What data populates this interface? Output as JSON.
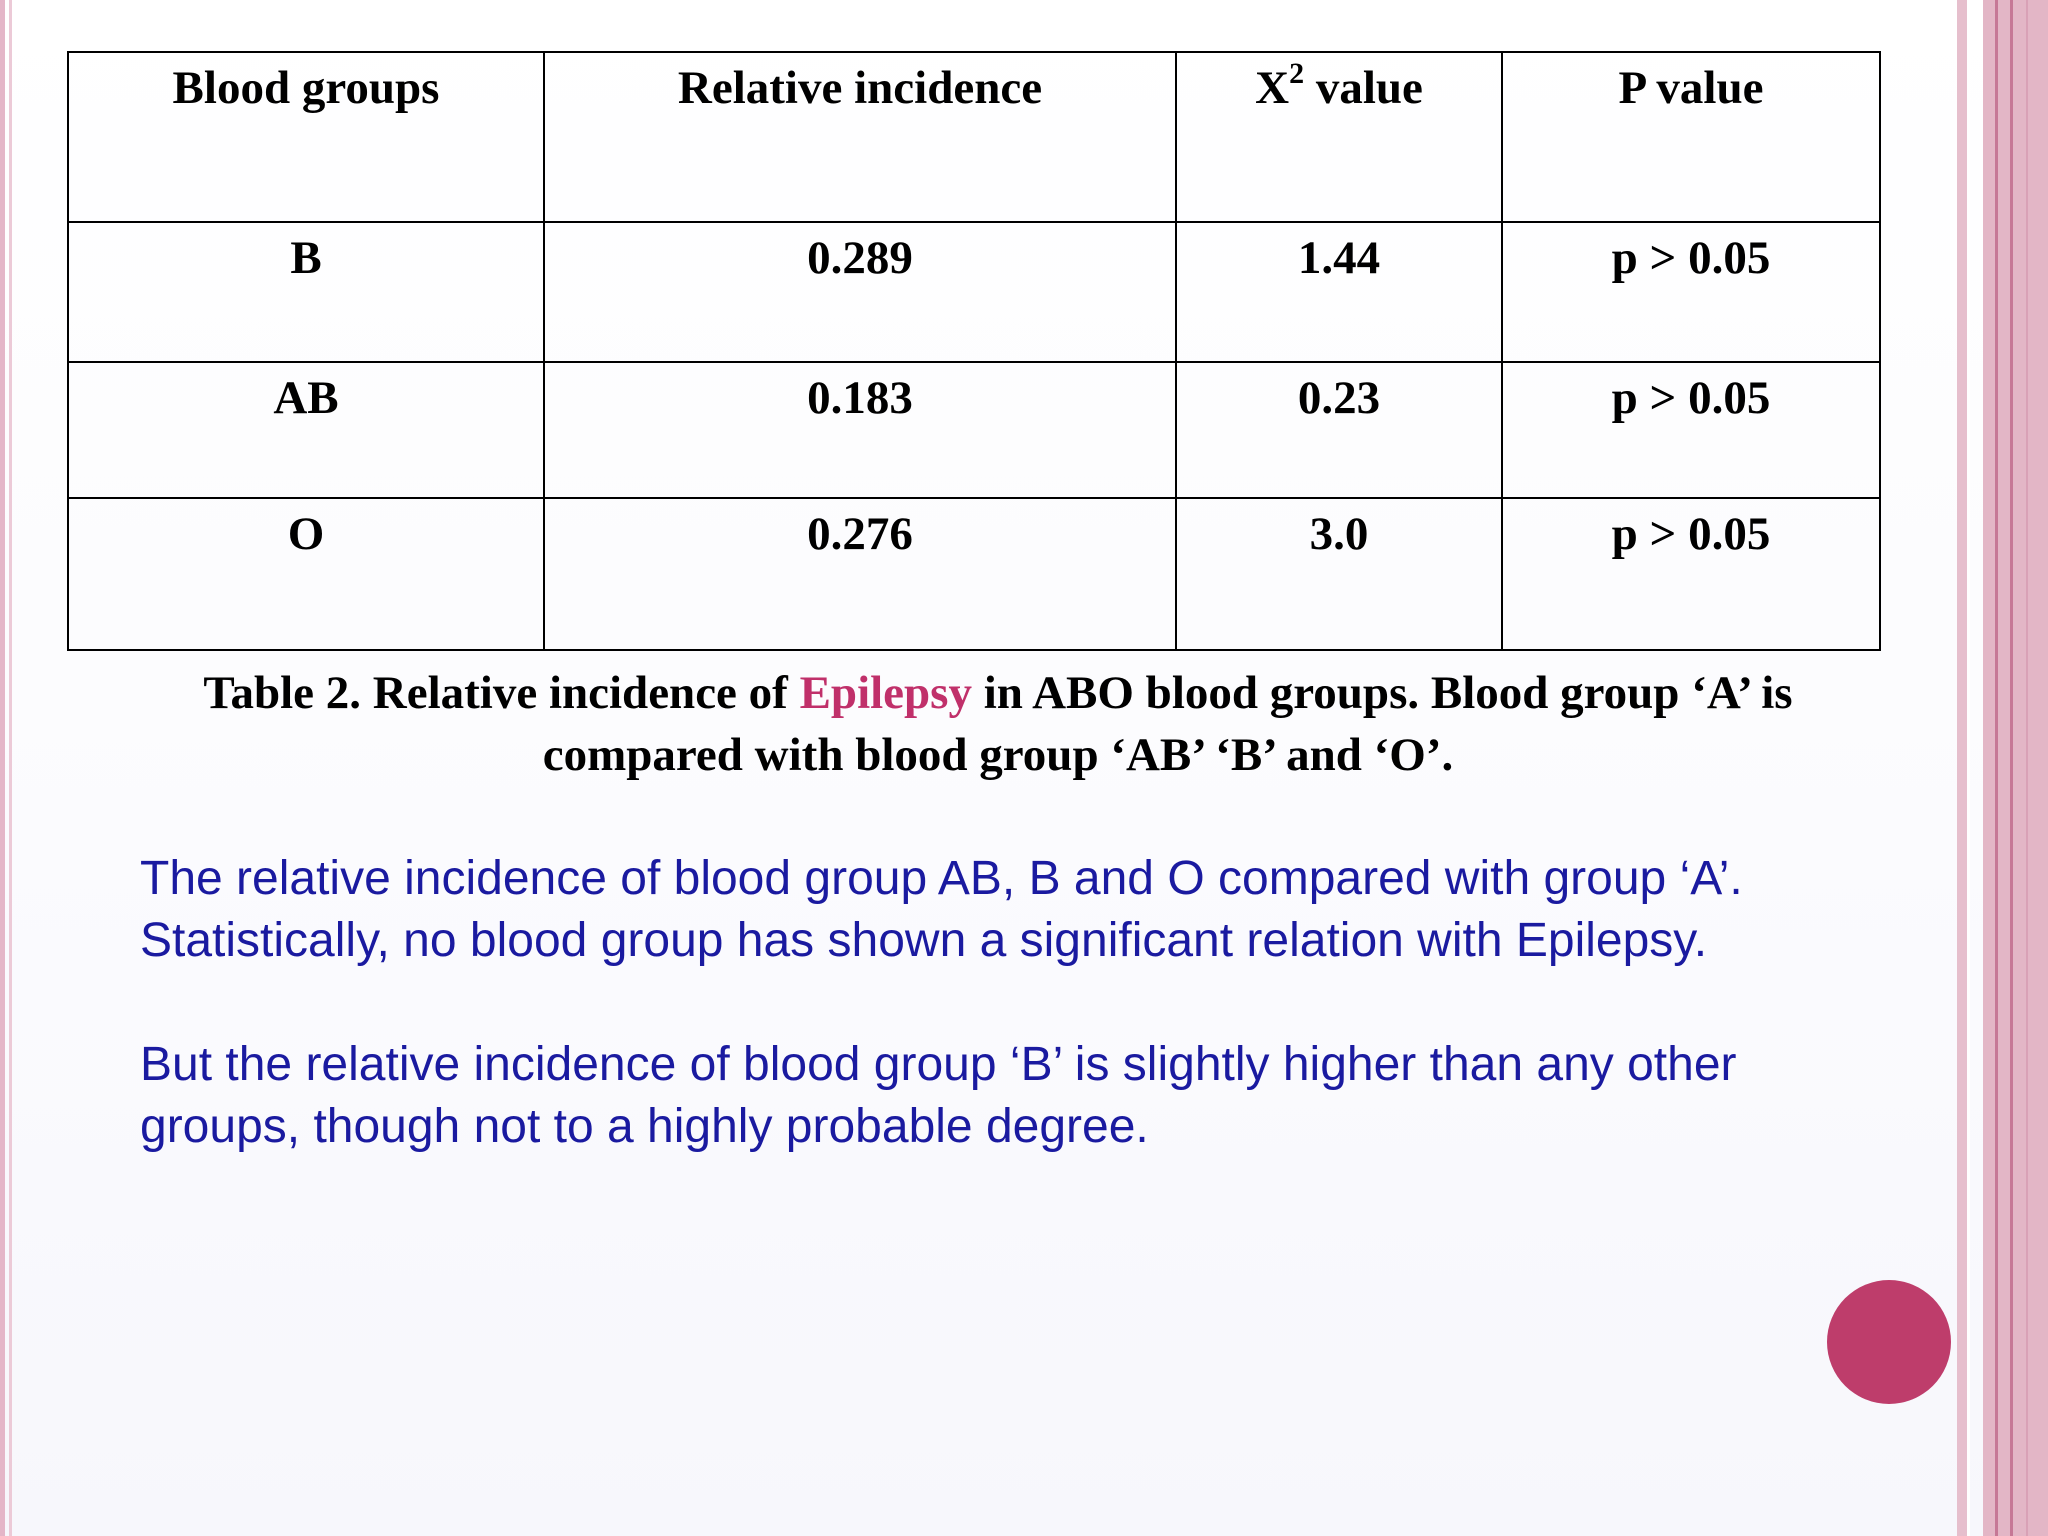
{
  "colors": {
    "accent": "#be3d6b",
    "highlight": "#c0306a",
    "body_text": "#1a1aa0",
    "stripe": "#e3b6c6"
  },
  "table": {
    "headers": {
      "col1": "Blood groups",
      "col2": "Relative incidence",
      "col3_main": "X",
      "col3_sup": "2",
      "col3_rest": " value",
      "col4": "P value"
    },
    "rows": [
      {
        "group": "B",
        "relative_incidence": "0.289",
        "x2": "1.44",
        "p": "p > 0.05"
      },
      {
        "group": "AB",
        "relative_incidence": "0.183",
        "x2": "0.23",
        "p": "p > 0.05"
      },
      {
        "group": "O",
        "relative_incidence": "0.276",
        "x2": "3.0",
        "p": "p > 0.05"
      }
    ]
  },
  "caption": {
    "before": "Table 2. Relative incidence of ",
    "highlight": "Epilepsy",
    "after": " in ABO blood groups. Blood group ‘A’ is compared with blood group ‘AB’ ‘B’ and ‘O’."
  },
  "body": {
    "para1": "The relative incidence of blood group AB, B and O compared with group ‘A’.",
    "para2": "Statistically, no blood group has shown a significant relation with Epilepsy.",
    "para3": "But the relative incidence of blood group ‘B’ is slightly higher than any other groups, though not to a highly probable degree."
  }
}
